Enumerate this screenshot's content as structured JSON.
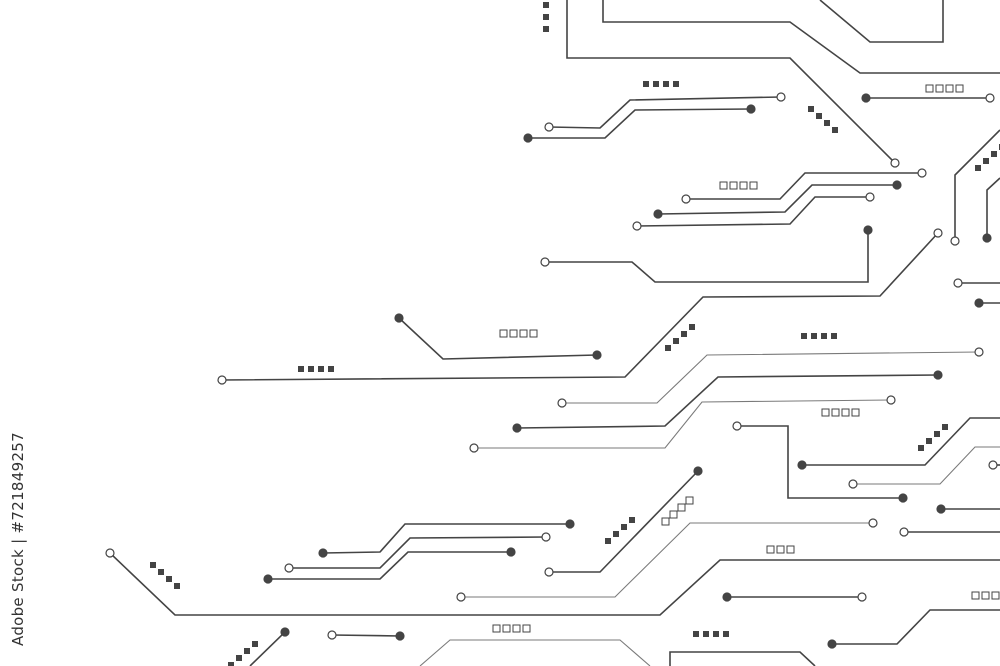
{
  "watermark": {
    "stock_id_text": "Adobe Stock | #721849257"
  },
  "colors": {
    "background": "#ffffff",
    "trace_dark": "#444444",
    "trace_light": "#7a7a7a",
    "pad": "#444444"
  },
  "artwork": {
    "subject": "circuit-board-traces"
  }
}
